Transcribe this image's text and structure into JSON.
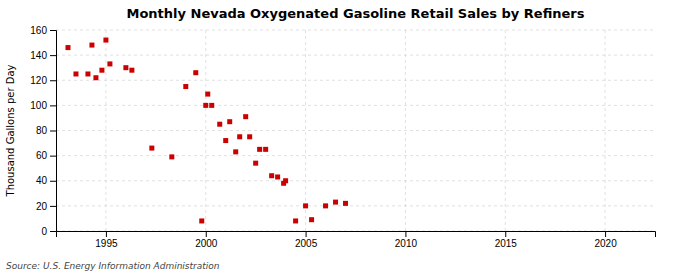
{
  "chart_data": {
    "type": "scatter",
    "title": "Monthly Nevada Oxygenated Gasoline Retail Sales by Refiners",
    "ylabel": "Thousand Gallons per Day",
    "annotations": [
      "Source: U.S. Energy Information Administration"
    ],
    "x": [
      1993.1,
      1993.5,
      1994.1,
      1994.3,
      1994.5,
      1994.8,
      1995.0,
      1995.2,
      1996.0,
      1996.3,
      1997.3,
      1998.3,
      1999.0,
      1999.5,
      1999.8,
      2000.0,
      2000.1,
      2000.3,
      2000.7,
      2001.0,
      2001.2,
      2001.5,
      2001.7,
      2002.0,
      2002.2,
      2002.5,
      2002.7,
      2003.0,
      2003.3,
      2003.6,
      2003.9,
      2004.0,
      2004.5,
      2005.0,
      2005.3,
      2006.0,
      2006.5,
      2007.0
    ],
    "values": [
      146,
      125,
      125,
      148,
      122,
      128,
      152,
      133,
      130,
      128,
      66,
      59,
      115,
      126,
      8,
      100,
      109,
      100,
      85,
      72,
      87,
      63,
      75,
      91,
      75,
      54,
      65,
      65,
      44,
      43,
      38,
      40,
      8,
      20,
      9,
      20,
      23,
      22
    ],
    "color": "#cc0000",
    "marker": "square",
    "xlim": [
      1992.5,
      2022.5
    ],
    "ylim": [
      0,
      160
    ],
    "xticks": [
      1995,
      2000,
      2005,
      2010,
      2015,
      2020
    ],
    "yticks": [
      0,
      20,
      40,
      60,
      80,
      100,
      120,
      140,
      160
    ],
    "grid": true
  }
}
